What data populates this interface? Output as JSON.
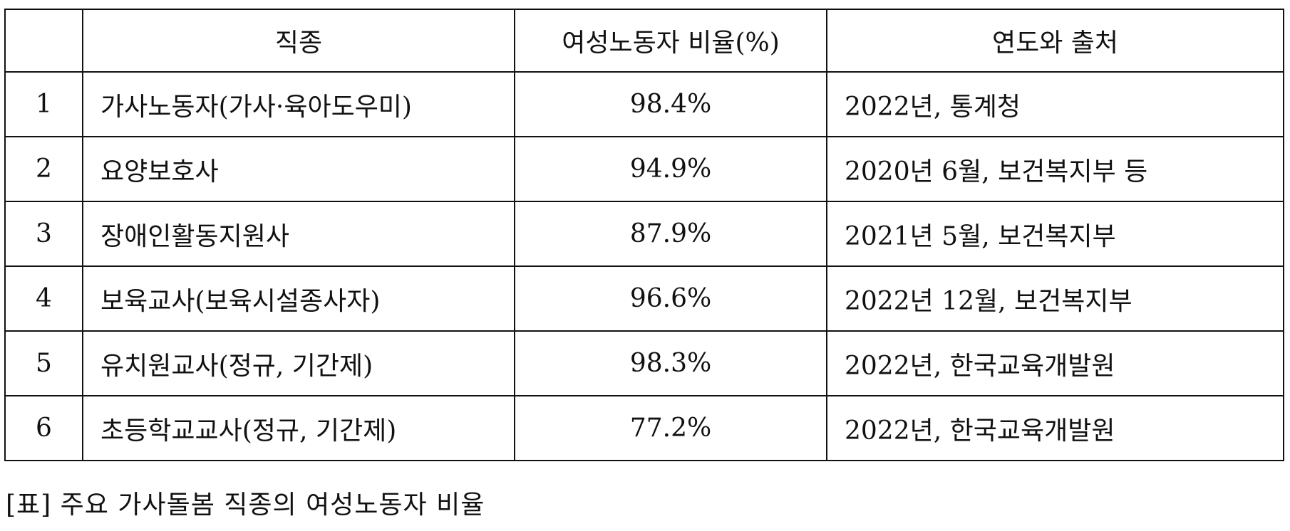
{
  "table": {
    "headers": [
      "",
      "직종",
      "여성노동자 비율(%)",
      "연도와 출처"
    ],
    "rows": [
      [
        "1",
        "가사노동자(가사·육아도우미)",
        "98.4%",
        "2022년, 통계청"
      ],
      [
        "2",
        "요양보호사",
        "94.9%",
        "2020년 6월, 보건복지부 등"
      ],
      [
        "3",
        "장애인활동지원사",
        "87.9%",
        "2021년 5월, 보건복지부"
      ],
      [
        "4",
        "보육교사(보육시설종사자)",
        "96.6%",
        "2022년 12월, 보건복지부"
      ],
      [
        "5",
        "유치원교사(정규, 기간제)",
        "98.3%",
        "2022년, 한국교육개발원"
      ],
      [
        "6",
        "초등학교교사(정규, 기간제)",
        "77.2%",
        "2022년, 한국교육개발원"
      ]
    ]
  },
  "caption": "[표] 주요 가사돌봄 직종의 여성노동자 비율"
}
